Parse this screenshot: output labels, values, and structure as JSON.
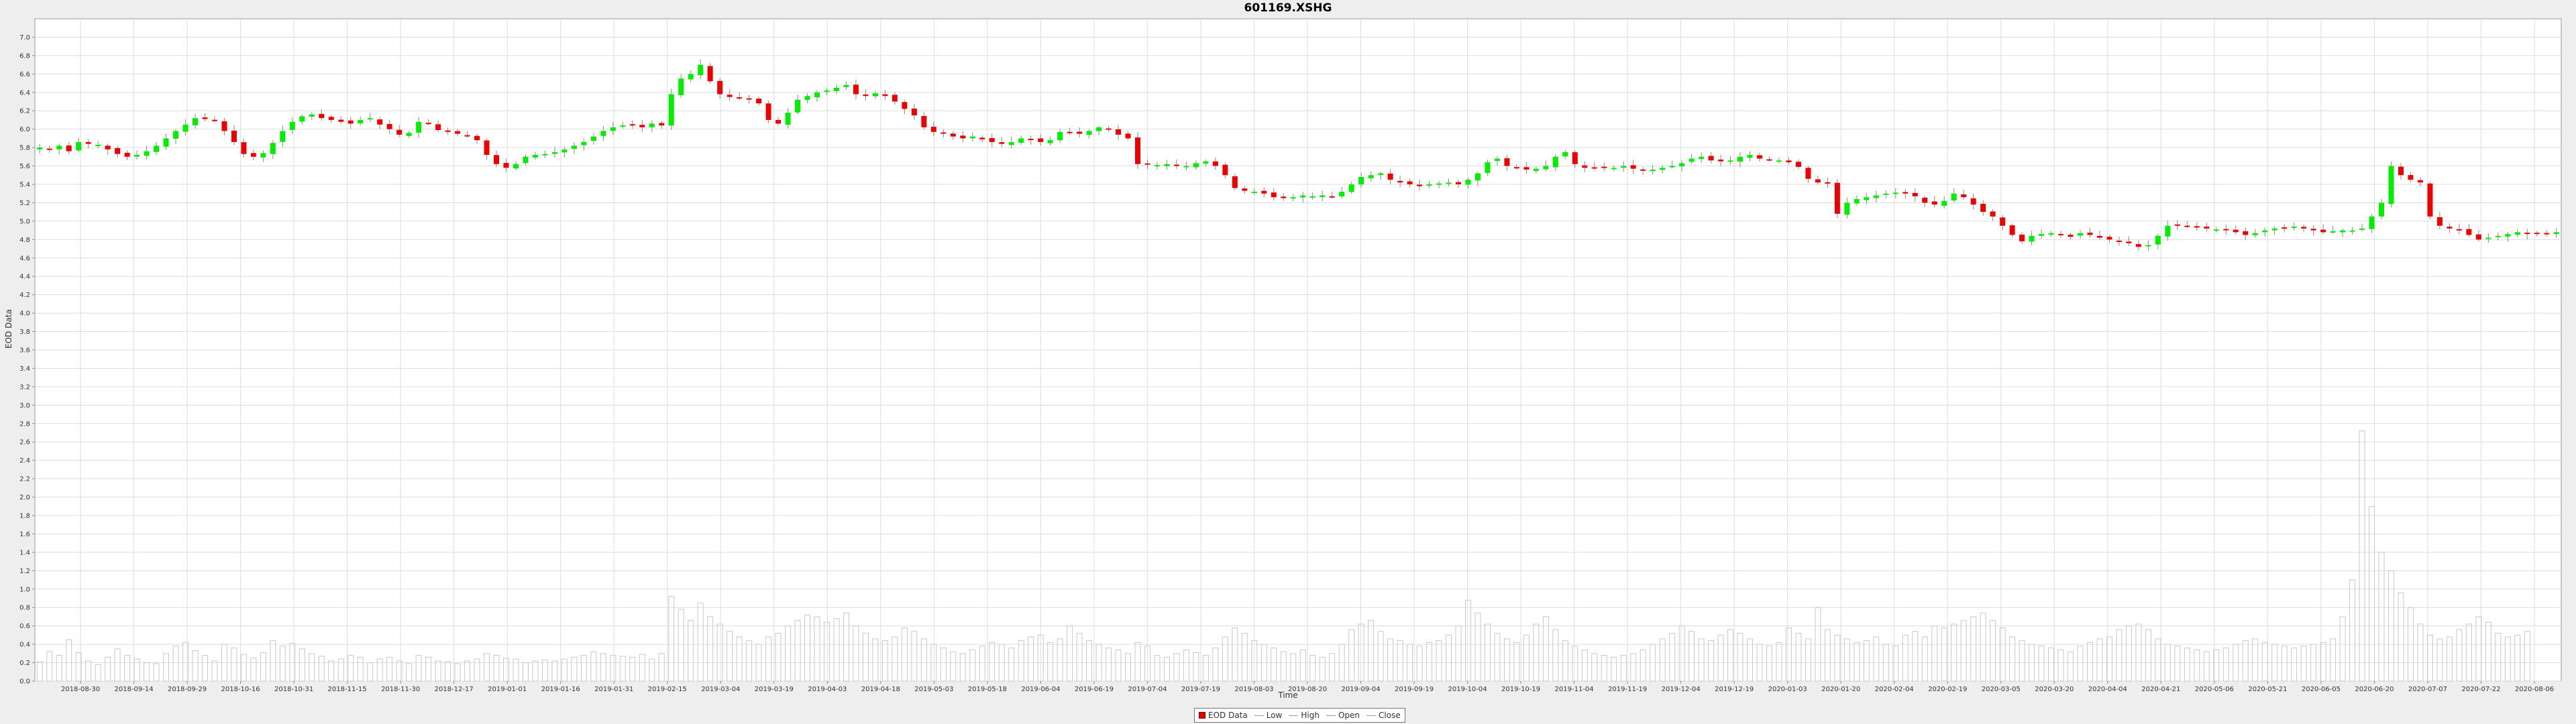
{
  "chart_data": {
    "type": "candlestick",
    "title": "601169.XSHG",
    "xlabel": "Time",
    "ylabel": "EOD Data",
    "ylim": [
      0.0,
      7.2
    ],
    "y_ticks": [
      "0.0",
      "0.2",
      "0.4",
      "0.6",
      "0.8",
      "1.0",
      "1.2",
      "1.4",
      "1.6",
      "1.8",
      "2.0",
      "2.2",
      "2.4",
      "2.6",
      "2.8",
      "3.0",
      "3.2",
      "3.4",
      "3.6",
      "3.8",
      "4.0",
      "4.2",
      "4.4",
      "4.6",
      "4.8",
      "5.0",
      "5.2",
      "5.4",
      "5.6",
      "5.8",
      "6.0",
      "6.2",
      "6.4",
      "6.6",
      "6.8",
      "7.0"
    ],
    "x_ticks": [
      "2018-08-30",
      "2018-09-14",
      "2018-09-29",
      "2018-10-16",
      "2018-10-31",
      "2018-11-15",
      "2018-11-30",
      "2018-12-17",
      "2019-01-01",
      "2019-01-16",
      "2019-01-31",
      "2019-02-15",
      "2019-03-04",
      "2019-03-19",
      "2019-04-03",
      "2019-04-18",
      "2019-05-03",
      "2019-05-18",
      "2019-06-04",
      "2019-06-19",
      "2019-07-04",
      "2019-07-19",
      "2019-08-03",
      "2019-08-20",
      "2019-09-04",
      "2019-09-19",
      "2019-10-04",
      "2019-10-19",
      "2019-11-04",
      "2019-11-19",
      "2019-12-04",
      "2019-12-19",
      "2020-01-03",
      "2020-01-20",
      "2020-02-04",
      "2020-02-19",
      "2020-03-05",
      "2020-03-20",
      "2020-04-04",
      "2020-04-21",
      "2020-05-06",
      "2020-05-21",
      "2020-06-05",
      "2020-06-20",
      "2020-07-07",
      "2020-07-22",
      "2020-08-06"
    ],
    "grid": true,
    "legend_position": "bottom",
    "legend": [
      "EOD Data",
      "Low",
      "High",
      "Open",
      "Close"
    ],
    "close_series": [
      5.8,
      5.78,
      5.82,
      5.76,
      5.86,
      5.84,
      5.83,
      5.78,
      5.73,
      5.7,
      5.72,
      5.76,
      5.82,
      5.9,
      5.98,
      6.05,
      6.12,
      6.11,
      6.1,
      5.98,
      5.86,
      5.73,
      5.7,
      5.74,
      5.85,
      5.98,
      6.08,
      6.14,
      6.16,
      6.12,
      6.1,
      6.08,
      6.06,
      6.1,
      6.12,
      6.05,
      6.0,
      5.94,
      5.96,
      6.08,
      6.06,
      5.99,
      5.97,
      5.95,
      5.93,
      5.88,
      5.72,
      5.62,
      5.58,
      5.62,
      5.7,
      5.72,
      5.73,
      5.75,
      5.78,
      5.82,
      5.86,
      5.92,
      5.98,
      6.02,
      6.04,
      6.05,
      6.02,
      6.06,
      6.04,
      6.38,
      6.55,
      6.6,
      6.7,
      6.52,
      6.38,
      6.35,
      6.34,
      6.33,
      6.28,
      6.1,
      6.06,
      6.18,
      6.32,
      6.36,
      6.4,
      6.42,
      6.45,
      6.48,
      6.38,
      6.36,
      6.39,
      6.36,
      6.3,
      6.22,
      6.15,
      6.02,
      5.97,
      5.95,
      5.92,
      5.9,
      5.92,
      5.89,
      5.86,
      5.84,
      5.86,
      5.9,
      5.89,
      5.86,
      5.88,
      5.97,
      5.97,
      5.95,
      5.98,
      6.02,
      6.0,
      5.94,
      5.9,
      5.62,
      5.62,
      5.61,
      5.62,
      5.61,
      5.6,
      5.63,
      5.65,
      5.6,
      5.5,
      5.36,
      5.33,
      5.32,
      5.3,
      5.26,
      5.25,
      5.26,
      5.28,
      5.27,
      5.28,
      5.27,
      5.32,
      5.4,
      5.48,
      5.5,
      5.52,
      5.45,
      5.42,
      5.4,
      5.38,
      5.4,
      5.41,
      5.42,
      5.4,
      5.45,
      5.52,
      5.64,
      5.68,
      5.6,
      5.58,
      5.56,
      5.57,
      5.6,
      5.7,
      5.75,
      5.62,
      5.58,
      5.58,
      5.59,
      5.58,
      5.6,
      5.57,
      5.55,
      5.56,
      5.58,
      5.6,
      5.63,
      5.68,
      5.7,
      5.66,
      5.65,
      5.66,
      5.7,
      5.72,
      5.68,
      5.67,
      5.66,
      5.64,
      5.59,
      5.46,
      5.42,
      5.42,
      5.08,
      5.2,
      5.24,
      5.26,
      5.28,
      5.3,
      5.31,
      5.3,
      5.27,
      5.2,
      5.18,
      5.22,
      5.3,
      5.26,
      5.18,
      5.1,
      5.05,
      4.95,
      4.85,
      4.78,
      4.84,
      4.86,
      4.87,
      4.85,
      4.83,
      4.87,
      4.85,
      4.82,
      4.8,
      4.78,
      4.76,
      4.72,
      4.74,
      4.84,
      4.95,
      4.96,
      4.95,
      4.93,
      4.92,
      4.91,
      4.9,
      4.88,
      4.85,
      4.87,
      4.9,
      4.92,
      4.93,
      4.94,
      4.92,
      4.9,
      4.88,
      4.89,
      4.9,
      4.9,
      4.92,
      5.05,
      5.2,
      5.6,
      5.5,
      5.45,
      5.42,
      5.05,
      4.95,
      4.92,
      4.9,
      4.85,
      4.8,
      4.82,
      4.84,
      4.86,
      4.88,
      4.86,
      4.87,
      4.86,
      4.88
    ],
    "volume_series": [
      0.21,
      0.32,
      0.28,
      0.45,
      0.31,
      0.22,
      0.18,
      0.26,
      0.35,
      0.28,
      0.24,
      0.2,
      0.19,
      0.3,
      0.38,
      0.42,
      0.33,
      0.28,
      0.22,
      0.4,
      0.36,
      0.29,
      0.25,
      0.31,
      0.44,
      0.38,
      0.41,
      0.35,
      0.3,
      0.27,
      0.22,
      0.24,
      0.28,
      0.26,
      0.2,
      0.24,
      0.26,
      0.22,
      0.19,
      0.28,
      0.26,
      0.22,
      0.21,
      0.19,
      0.22,
      0.24,
      0.3,
      0.28,
      0.25,
      0.24,
      0.2,
      0.22,
      0.23,
      0.22,
      0.24,
      0.26,
      0.28,
      0.32,
      0.3,
      0.28,
      0.27,
      0.26,
      0.29,
      0.24,
      0.3,
      0.92,
      0.78,
      0.66,
      0.85,
      0.7,
      0.62,
      0.54,
      0.48,
      0.44,
      0.4,
      0.48,
      0.52,
      0.6,
      0.66,
      0.72,
      0.7,
      0.64,
      0.68,
      0.74,
      0.6,
      0.52,
      0.46,
      0.44,
      0.48,
      0.58,
      0.54,
      0.46,
      0.4,
      0.36,
      0.32,
      0.3,
      0.34,
      0.38,
      0.42,
      0.4,
      0.36,
      0.44,
      0.48,
      0.5,
      0.42,
      0.46,
      0.6,
      0.52,
      0.44,
      0.4,
      0.36,
      0.34,
      0.3,
      0.42,
      0.38,
      0.28,
      0.26,
      0.3,
      0.34,
      0.31,
      0.28,
      0.36,
      0.48,
      0.58,
      0.52,
      0.44,
      0.4,
      0.36,
      0.32,
      0.3,
      0.34,
      0.28,
      0.26,
      0.3,
      0.4,
      0.56,
      0.62,
      0.66,
      0.54,
      0.46,
      0.44,
      0.4,
      0.38,
      0.42,
      0.44,
      0.5,
      0.6,
      0.88,
      0.74,
      0.62,
      0.52,
      0.46,
      0.42,
      0.5,
      0.62,
      0.7,
      0.56,
      0.44,
      0.38,
      0.34,
      0.3,
      0.28,
      0.26,
      0.28,
      0.3,
      0.34,
      0.4,
      0.46,
      0.52,
      0.6,
      0.54,
      0.46,
      0.44,
      0.5,
      0.56,
      0.52,
      0.46,
      0.4,
      0.38,
      0.42,
      0.58,
      0.52,
      0.46,
      0.8,
      0.56,
      0.5,
      0.46,
      0.42,
      0.44,
      0.48,
      0.4,
      0.38,
      0.5,
      0.54,
      0.48,
      0.6,
      0.58,
      0.62,
      0.66,
      0.7,
      0.74,
      0.66,
      0.58,
      0.48,
      0.44,
      0.4,
      0.38,
      0.36,
      0.34,
      0.32,
      0.38,
      0.42,
      0.46,
      0.48,
      0.56,
      0.6,
      0.62,
      0.56,
      0.46,
      0.4,
      0.38,
      0.36,
      0.34,
      0.32,
      0.34,
      0.36,
      0.4,
      0.44,
      0.46,
      0.42,
      0.4,
      0.38,
      0.36,
      0.38,
      0.4,
      0.42,
      0.46,
      0.7,
      1.1,
      2.72,
      1.9,
      1.4,
      1.2,
      0.96,
      0.8,
      0.62,
      0.5,
      0.46,
      0.48,
      0.56,
      0.62,
      0.7,
      0.64,
      0.52,
      0.48,
      0.5,
      0.54
    ]
  },
  "colors": {
    "up": "#00ee00",
    "down": "#ee0000",
    "wick": "#888888",
    "volume": "#c8c8c8",
    "grid": "#dddddd",
    "plot_bg": "#ffffff"
  }
}
